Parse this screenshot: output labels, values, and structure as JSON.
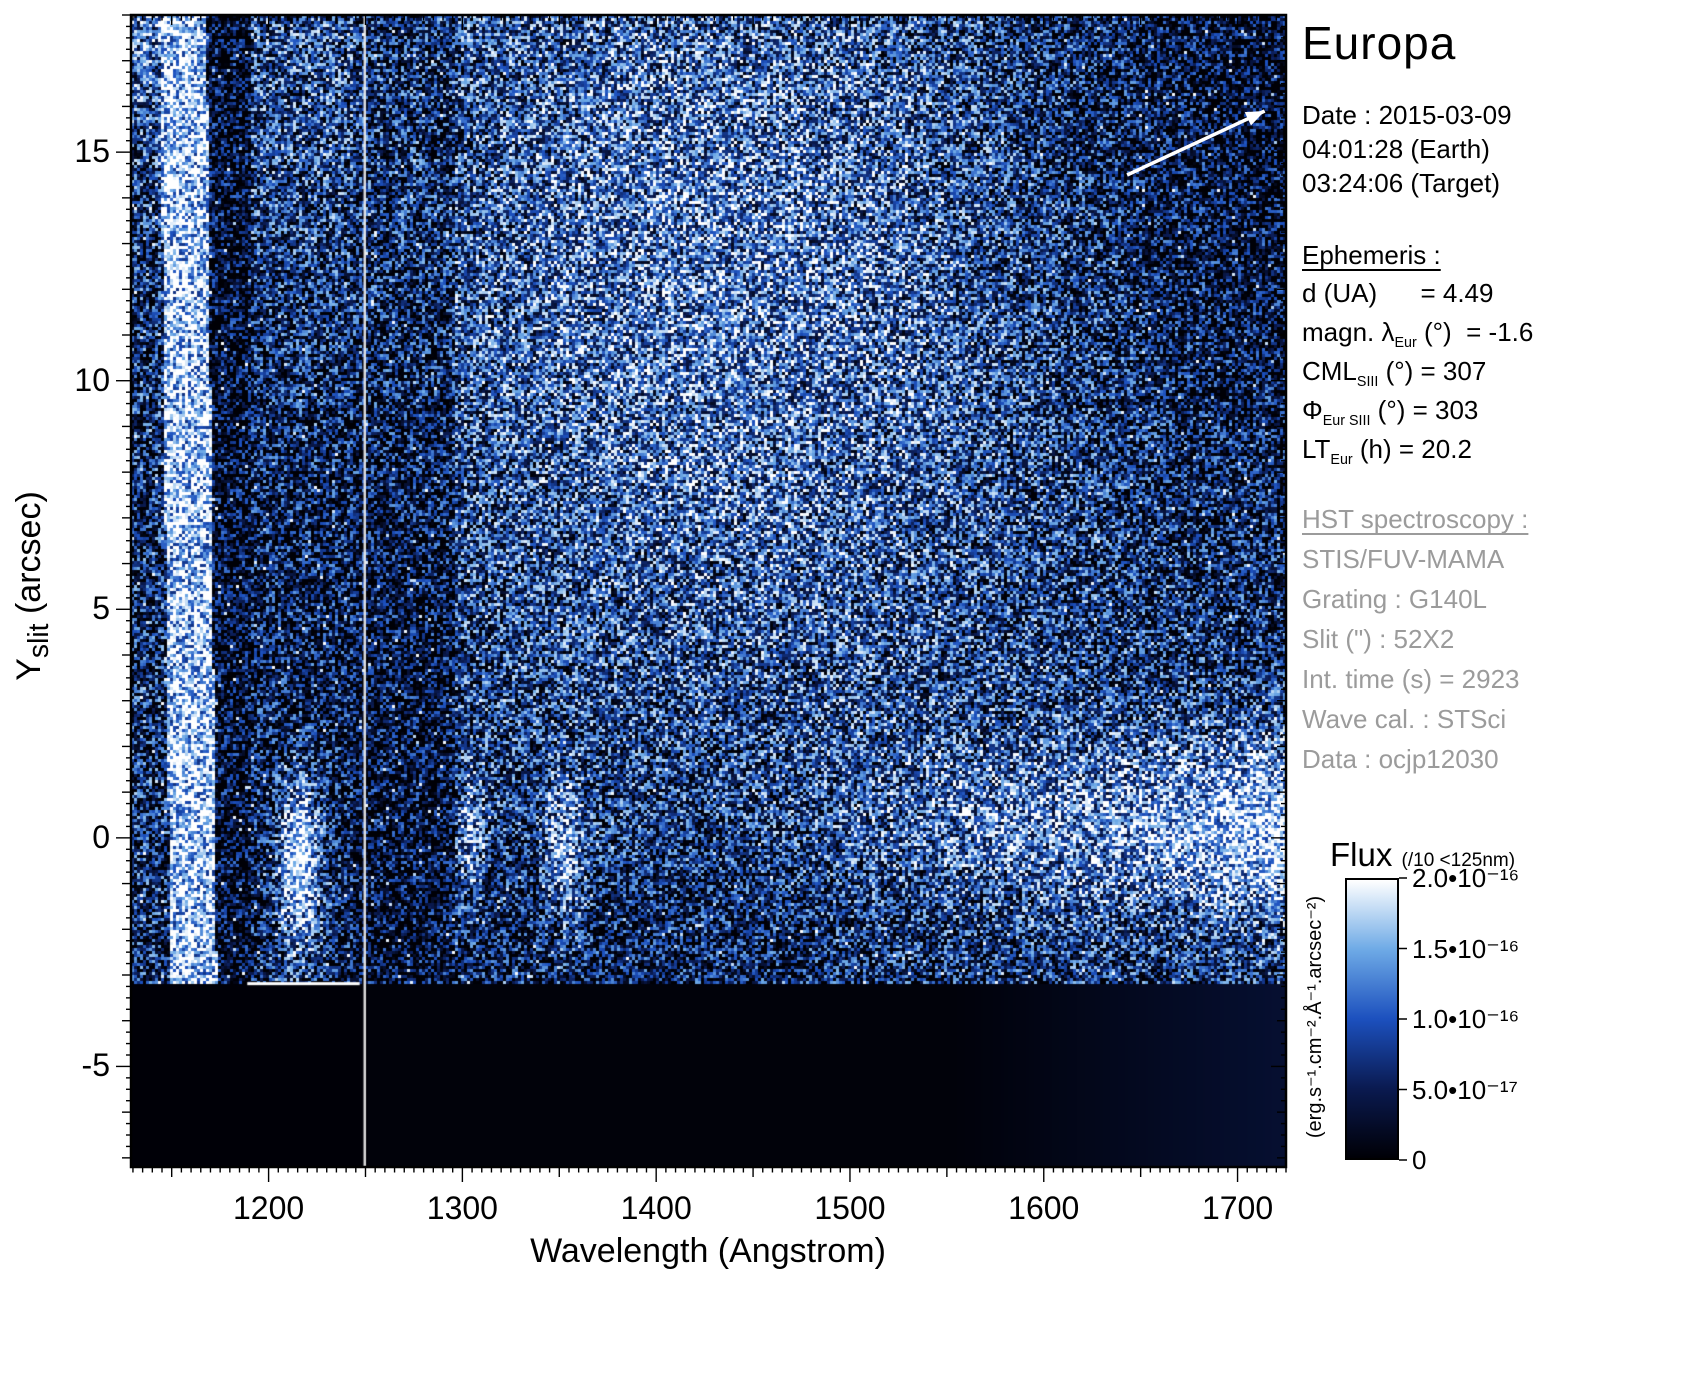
{
  "title": "Europa",
  "info": {
    "date": "Date : 2015-03-09",
    "time_earth": "04:01:28 (Earth)",
    "time_target": "03:24:06 (Target)",
    "ephemeris_heading": "Ephemeris :",
    "ephemeris_rows": [
      {
        "pre": "d (UA)",
        "sub": "",
        "post": "      = 4.49"
      },
      {
        "pre": "magn. λ",
        "sub": "Eur",
        "post": " (°)  = -1.6"
      },
      {
        "pre": "CML",
        "sub": "SIII",
        "post": " (°) = 307"
      },
      {
        "pre": "Φ",
        "sub": "Eur SIII",
        "post": " (°) = 303"
      },
      {
        "pre": "LT",
        "sub": "Eur",
        "post": " (h) = 20.2"
      }
    ],
    "hst_heading": "HST spectroscopy :",
    "hst_rows": [
      "STIS/FUV-MAMA",
      "Grating : G140L",
      "Slit (\") : 52X2",
      "Int. time (s) = 2923",
      "Wave cal. : STSci",
      "Data : ocjp12030"
    ]
  },
  "chart_data": {
    "type": "heatmap",
    "title": "Europa",
    "xlabel": "Wavelength (Angstrom)",
    "ylabel_pre": "Y",
    "ylabel_sub": "slit",
    "ylabel_post": " (arcsec)",
    "xlim": [
      1129,
      1725
    ],
    "ylim": [
      -7.2,
      18.0
    ],
    "x_ticks": [
      1200,
      1300,
      1400,
      1500,
      1600,
      1700
    ],
    "y_ticks": [
      -5,
      0,
      5,
      10,
      15
    ],
    "x_minor_step": 5,
    "y_minor_step": 0.25,
    "data_gap_below_y": -3.2,
    "colormap": [
      "#000006",
      "#0a1a50",
      "#1c50be",
      "#6eaae6",
      "#ffffff"
    ],
    "colorbar": {
      "title": "Flux",
      "note": "(/10 <125nm)",
      "units": "(erg.s⁻¹.cm⁻².Å⁻¹.arcsec⁻²)",
      "tick_labels": [
        "2.0•10⁻¹⁶",
        "1.5•10⁻¹⁶",
        "1.0•10⁻¹⁶",
        "5.0•10⁻¹⁷",
        "0"
      ],
      "range": [
        0,
        2e-16
      ]
    },
    "features": [
      {
        "name": "detector-edge-bright-band",
        "wavelength_range": [
          1144,
          1170
        ],
        "y_range": [
          -3.2,
          18
        ]
      },
      {
        "name": "geocoronal-lyman-alpha-column",
        "wavelength_range": [
          1191,
          1243
        ],
        "y_range": [
          -3.2,
          18
        ]
      },
      {
        "name": "detector-gap-line",
        "wavelength": 1250
      },
      {
        "name": "europa-lyman-alpha-spot",
        "wavelength": 1216,
        "y": -0.2
      },
      {
        "name": "oi-1304-spot",
        "wavelength": 1305,
        "y": 0
      },
      {
        "name": "oi-1356-spot",
        "wavelength": 1353,
        "y": -0.4
      },
      {
        "name": "solar-reflected-continuum-band",
        "wavelength_range": [
          1450,
          1724
        ],
        "y": 0.2
      },
      {
        "name": "bright-airglow-region",
        "wavelength_range": [
          1300,
          1600
        ],
        "y_range": [
          3,
          18
        ]
      },
      {
        "name": "no-data-dark-region",
        "y_range": [
          -7.2,
          -3.2
        ]
      }
    ],
    "arrow": {
      "x1_wl": 1643,
      "y1": 14.5,
      "x2_wl": 1714,
      "y2": 15.9
    }
  }
}
